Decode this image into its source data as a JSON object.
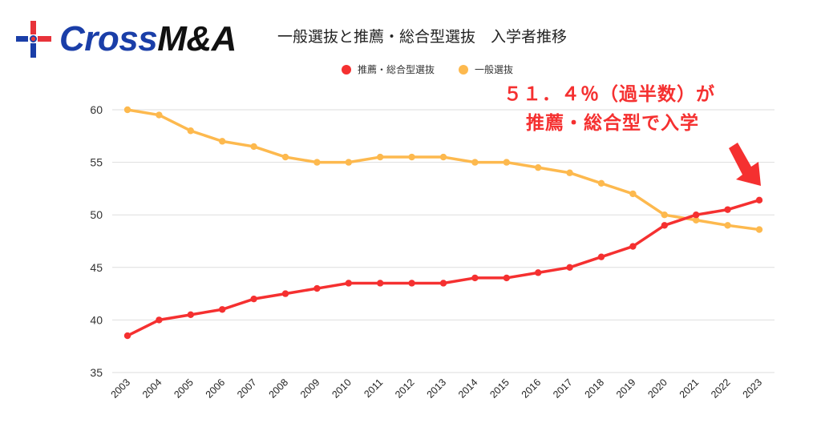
{
  "brand": {
    "logo_part1": "Cross",
    "logo_part2": "M&A",
    "logo_icon": "cross-plus-icon",
    "colors": {
      "blue": "#1a3ea8",
      "red": "#e8333a",
      "dark": "#111111"
    }
  },
  "annotation": {
    "line1": "５１．４％（過半数）が",
    "line2": "推薦・総合型で入学",
    "arrow_icon": "arrow-down-right-icon",
    "color": "#f53030"
  },
  "chart_data": {
    "type": "line",
    "title": "一般選抜と推薦・総合型選抜　入学者推移",
    "xlabel": "",
    "ylabel": "",
    "ylim": [
      35,
      60
    ],
    "yticks": [
      "35",
      "40",
      "45",
      "50",
      "55",
      "60"
    ],
    "grid": true,
    "legend_position": "top-center",
    "x": [
      "2003",
      "2004",
      "2005",
      "2006",
      "2007",
      "2008",
      "2009",
      "2010",
      "2011",
      "2012",
      "2013",
      "2014",
      "2015",
      "2016",
      "2017",
      "2018",
      "2019",
      "2020",
      "2021",
      "2022",
      "2023"
    ],
    "series": [
      {
        "name": "推薦・総合型選抜",
        "color": "#f53030",
        "values": [
          38.5,
          40,
          40.5,
          41,
          42,
          42.5,
          43,
          43.5,
          43.5,
          43.5,
          43.5,
          44,
          44,
          44.5,
          45,
          46,
          47,
          49,
          50,
          50.5,
          51.4
        ]
      },
      {
        "name": "一般選抜",
        "color": "#fdb94e",
        "values": [
          60,
          59.5,
          58,
          57,
          56.5,
          55.5,
          55,
          55,
          55.5,
          55.5,
          55.5,
          55,
          55,
          54.5,
          54,
          53,
          52,
          50,
          49.5,
          49,
          48.6
        ]
      }
    ]
  }
}
